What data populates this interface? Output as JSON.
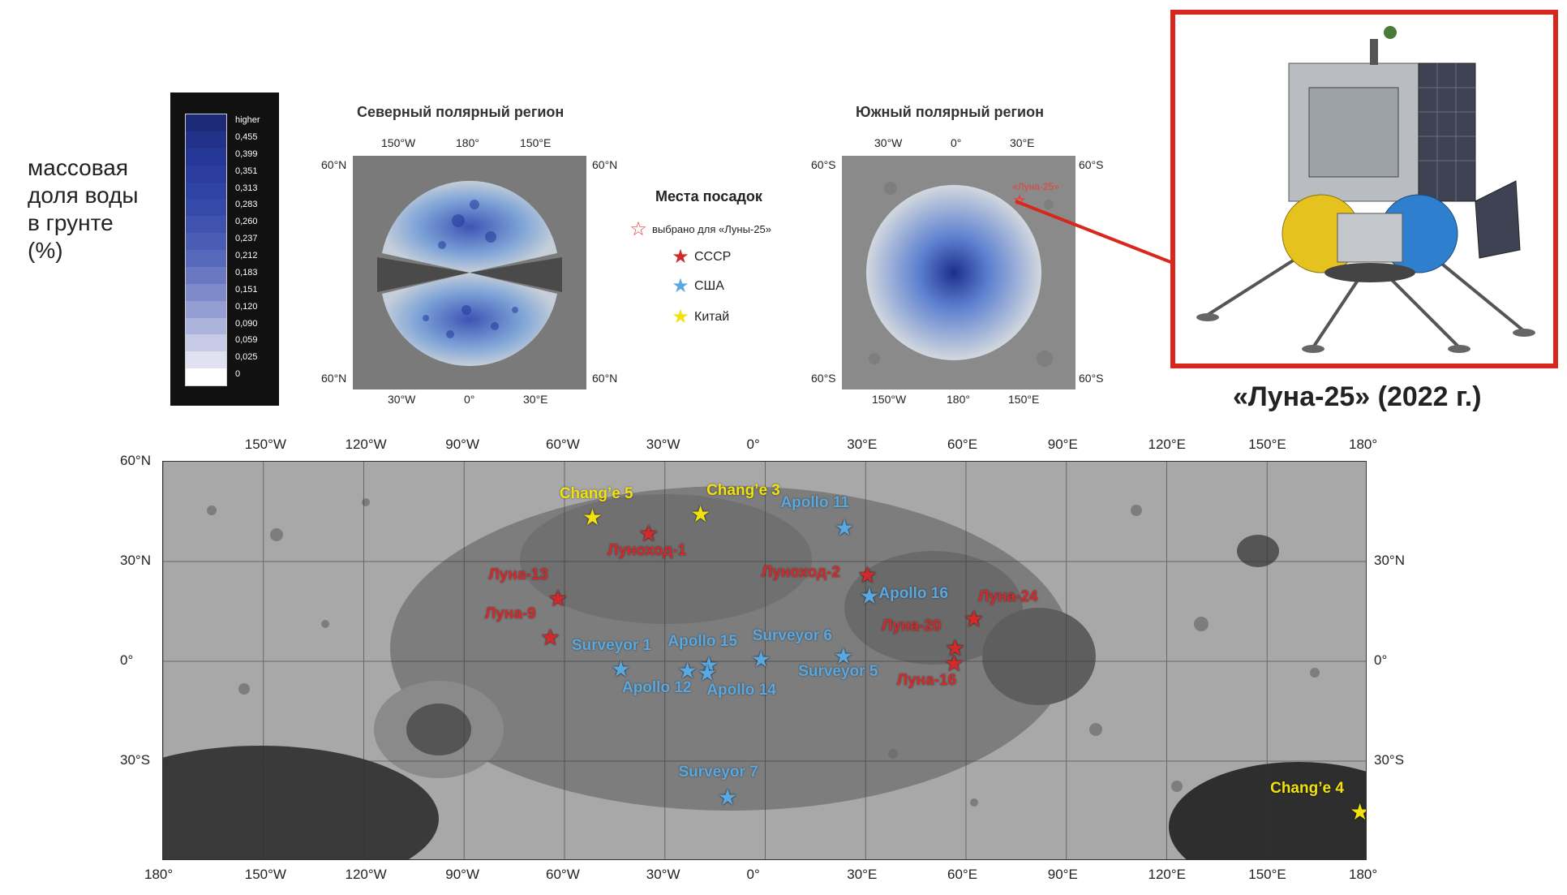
{
  "water_legend": {
    "title_lines": [
      "массовая",
      "доля воды",
      "в грунте",
      "(%)"
    ],
    "scale": [
      "higher",
      "0,455",
      "0,399",
      "0,351",
      "0,313",
      "0,283",
      "0,260",
      "0,237",
      "0,212",
      "0,183",
      "0,151",
      "0,120",
      "0,090",
      "0,059",
      "0,025",
      "0"
    ],
    "colors": [
      "#1c2a78",
      "#22318a",
      "#253796",
      "#2a3d9e",
      "#2f43a4",
      "#3549a8",
      "#3e52ae",
      "#4a5db4",
      "#5767ba",
      "#6a78c2",
      "#7e8ac9",
      "#949ed2",
      "#acb3dc",
      "#c6cae7",
      "#e0e2f1",
      "#ffffff"
    ]
  },
  "north_polar": {
    "title": "Северный полярный регион",
    "top_ticks": [
      "150°W",
      "180°",
      "150°E"
    ],
    "bottom_ticks": [
      "30°W",
      "0°",
      "30°E"
    ],
    "lat_labels": [
      "60°N",
      "60°N",
      "60°N",
      "60°N"
    ]
  },
  "south_polar": {
    "title": "Южный полярный регион",
    "top_ticks": [
      "30°W",
      "0°",
      "30°E"
    ],
    "bottom_ticks": [
      "150°W",
      "180°",
      "150°E"
    ],
    "lat_labels": [
      "60°S",
      "60°S",
      "60°S",
      "60°S"
    ],
    "site_label": "«Луна-25»"
  },
  "landing_legend": {
    "title": "Места посадок",
    "items": [
      {
        "label": "выбрано для «Луны-25»",
        "color": "#e8413a",
        "icon": "outline-star-icon"
      },
      {
        "label": "СССР",
        "color": "#d22a2a",
        "icon": "star-icon"
      },
      {
        "label": "США",
        "color": "#5aa8e0",
        "icon": "star-icon"
      },
      {
        "label": "Китай",
        "color": "#f2e10e",
        "icon": "star-icon"
      }
    ]
  },
  "lander": {
    "caption": "«Луна-25» (2022 г.)",
    "frame_color": "#d8281e"
  },
  "main_map": {
    "lon_ticks": [
      "180°",
      "150°W",
      "120°W",
      "90°W",
      "60°W",
      "30°W",
      "0°",
      "30°E",
      "60°E",
      "90°E",
      "120°E",
      "150°E",
      "180°"
    ],
    "lat_ticks": [
      "60°N",
      "30°N",
      "0°",
      "30°S"
    ],
    "right_lat_ticks": [
      "30°N",
      "0°",
      "30°S"
    ],
    "lat_range": [
      -60,
      60
    ],
    "lon_range": [
      -180,
      180
    ],
    "sites": [
      {
        "name": "Chang’e 5",
        "lon": -51.8,
        "lat": 43.1,
        "country": "china"
      },
      {
        "name": "Chang’e 3",
        "lon": -19.5,
        "lat": 44.1,
        "country": "china"
      },
      {
        "name": "Луноход-1",
        "lon": -35.0,
        "lat": 38.3,
        "country": "ussr"
      },
      {
        "name": "Apollo 11",
        "lon": 23.5,
        "lat": 40.0,
        "country": "usa"
      },
      {
        "name": "Луноход-2",
        "lon": 30.4,
        "lat": 25.8,
        "country": "ussr"
      },
      {
        "name": "Apollo 16",
        "lon": 31.0,
        "lat": 19.5,
        "country": "usa"
      },
      {
        "name": "Луна-13",
        "lon": -62.1,
        "lat": 18.9,
        "country": "ussr"
      },
      {
        "name": "Луна-24",
        "lon": 62.2,
        "lat": 12.7,
        "country": "ussr"
      },
      {
        "name": "Луна-9",
        "lon": -64.4,
        "lat": 7.1,
        "country": "ussr"
      },
      {
        "name": "Луна-20",
        "lon": 56.6,
        "lat": 3.8,
        "country": "ussr"
      },
      {
        "name": "Surveyor 1",
        "lon": -43.3,
        "lat": -2.5,
        "country": "usa"
      },
      {
        "name": "Apollo 15",
        "lon": -17.0,
        "lat": -1.3,
        "country": "usa"
      },
      {
        "name": "Surveyor 6",
        "lon": -1.4,
        "lat": 0.4,
        "country": "usa"
      },
      {
        "name": "Surveyor 5",
        "lon": 23.2,
        "lat": 1.4,
        "country": "usa"
      },
      {
        "name": "Apollo 12",
        "lon": -23.4,
        "lat": -3.0,
        "country": "usa"
      },
      {
        "name": "Apollo 14",
        "lon": -17.5,
        "lat": -3.6,
        "country": "usa"
      },
      {
        "name": "Луна-16",
        "lon": 56.3,
        "lat": -0.7,
        "country": "ussr"
      },
      {
        "name": "Surveyor 7",
        "lon": -11.4,
        "lat": -41.0,
        "country": "usa"
      },
      {
        "name": "Chang’e 4",
        "lon": 177.6,
        "lat": -45.4,
        "country": "china"
      }
    ],
    "colors": {
      "ussr": "#d22a2a",
      "usa": "#5aa8e0",
      "china": "#f2e10e"
    }
  }
}
